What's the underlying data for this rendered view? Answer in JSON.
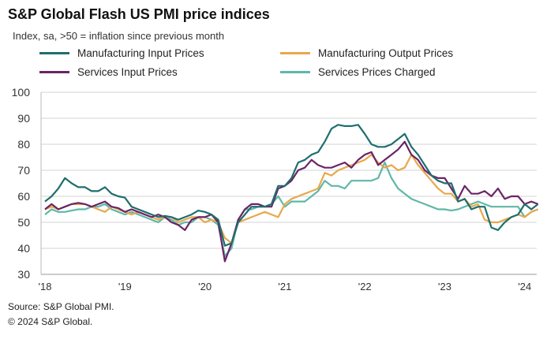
{
  "chart_data": {
    "type": "line",
    "title": "S&P Global Flash US PMI price indices",
    "subtitle": "Index, sa, >50 = inflation  since previous  month",
    "xlabel": "",
    "ylabel": "",
    "ylim": [
      30,
      100
    ],
    "yticks": [
      30,
      40,
      50,
      60,
      70,
      80,
      90,
      100
    ],
    "x_start": "2018-01",
    "x_end": "2024-03",
    "frequency": "monthly",
    "xtick_labels": [
      "'18",
      "'19",
      "'20",
      "'21",
      "'22",
      "'23",
      "'24"
    ],
    "grid": true,
    "legend_placement": "top",
    "series": [
      {
        "name": "Manufacturing Input Prices",
        "color": "#1f6e6e",
        "values": [
          58,
          60,
          63,
          67,
          65,
          63.5,
          63.5,
          62,
          62,
          63.5,
          61,
          60,
          59.5,
          56,
          55,
          54,
          53,
          52,
          52.5,
          52,
          51,
          52,
          53,
          54.5,
          54,
          53,
          51,
          41,
          42,
          50,
          53,
          56,
          56,
          56,
          57,
          64,
          64,
          67,
          73,
          74,
          76,
          77,
          81,
          86,
          87.5,
          87,
          87,
          87.5,
          84,
          80,
          79,
          79,
          80,
          82,
          84,
          79,
          76,
          72,
          68,
          66,
          65,
          65,
          58,
          59,
          55,
          56,
          56,
          48,
          47,
          50,
          52,
          53,
          57,
          55,
          57
        ]
      },
      {
        "name": "Manufacturing Output Prices",
        "color": "#e8a84c",
        "values": [
          55,
          56,
          55,
          56,
          57,
          57,
          57,
          56,
          55,
          54,
          56,
          55,
          54,
          53,
          54,
          53,
          52,
          51,
          52,
          52,
          50,
          51,
          52,
          52,
          50,
          51,
          50,
          44,
          42,
          50,
          51,
          52,
          53,
          54,
          53,
          52,
          57,
          59,
          60,
          61,
          62,
          63,
          69,
          68,
          70,
          71,
          72,
          73,
          74,
          76,
          73,
          71,
          72,
          70,
          71,
          76,
          72,
          69,
          66,
          63,
          61,
          61,
          58,
          59,
          56,
          57,
          51,
          50,
          50,
          51,
          52,
          53,
          52,
          54,
          55
        ]
      },
      {
        "name": "Services Input Prices",
        "color": "#6b2466",
        "values": [
          55,
          57,
          55,
          56,
          57,
          57.5,
          57,
          56,
          57,
          58,
          56,
          55.5,
          54,
          55,
          54,
          53,
          52,
          53,
          52,
          50,
          49,
          47,
          51,
          52,
          52,
          53,
          50,
          35,
          42,
          51,
          55,
          57,
          57,
          56,
          56,
          63,
          64,
          66,
          70,
          71,
          74,
          72,
          71,
          71,
          72,
          73,
          71,
          74,
          76,
          77,
          72,
          74,
          76,
          78,
          81,
          76,
          74,
          70,
          68,
          67,
          67,
          63,
          59,
          64,
          61,
          61,
          62,
          60,
          63,
          59,
          60,
          60,
          57,
          58,
          57
        ]
      },
      {
        "name": "Services Prices Charged",
        "color": "#5fb8a8",
        "values": [
          53,
          55,
          54,
          54,
          54.5,
          55,
          55,
          56,
          56,
          57,
          55,
          54,
          53,
          54,
          53,
          52,
          51,
          50,
          52,
          51,
          49,
          50,
          50,
          52,
          52,
          51,
          49,
          37,
          40,
          51,
          55,
          55,
          56,
          56,
          57,
          60,
          56,
          58,
          58,
          58,
          60,
          62,
          66,
          64,
          64,
          63,
          66,
          66,
          66,
          66,
          67,
          73,
          67,
          63,
          61,
          59,
          58,
          57,
          56,
          55,
          55,
          54.5,
          55,
          56,
          57,
          58,
          57,
          56,
          56,
          56,
          56,
          56,
          52,
          54,
          55
        ]
      }
    ]
  },
  "source": "Source: S&P Global PMI.",
  "copyright": "© 2024 S&P Global."
}
